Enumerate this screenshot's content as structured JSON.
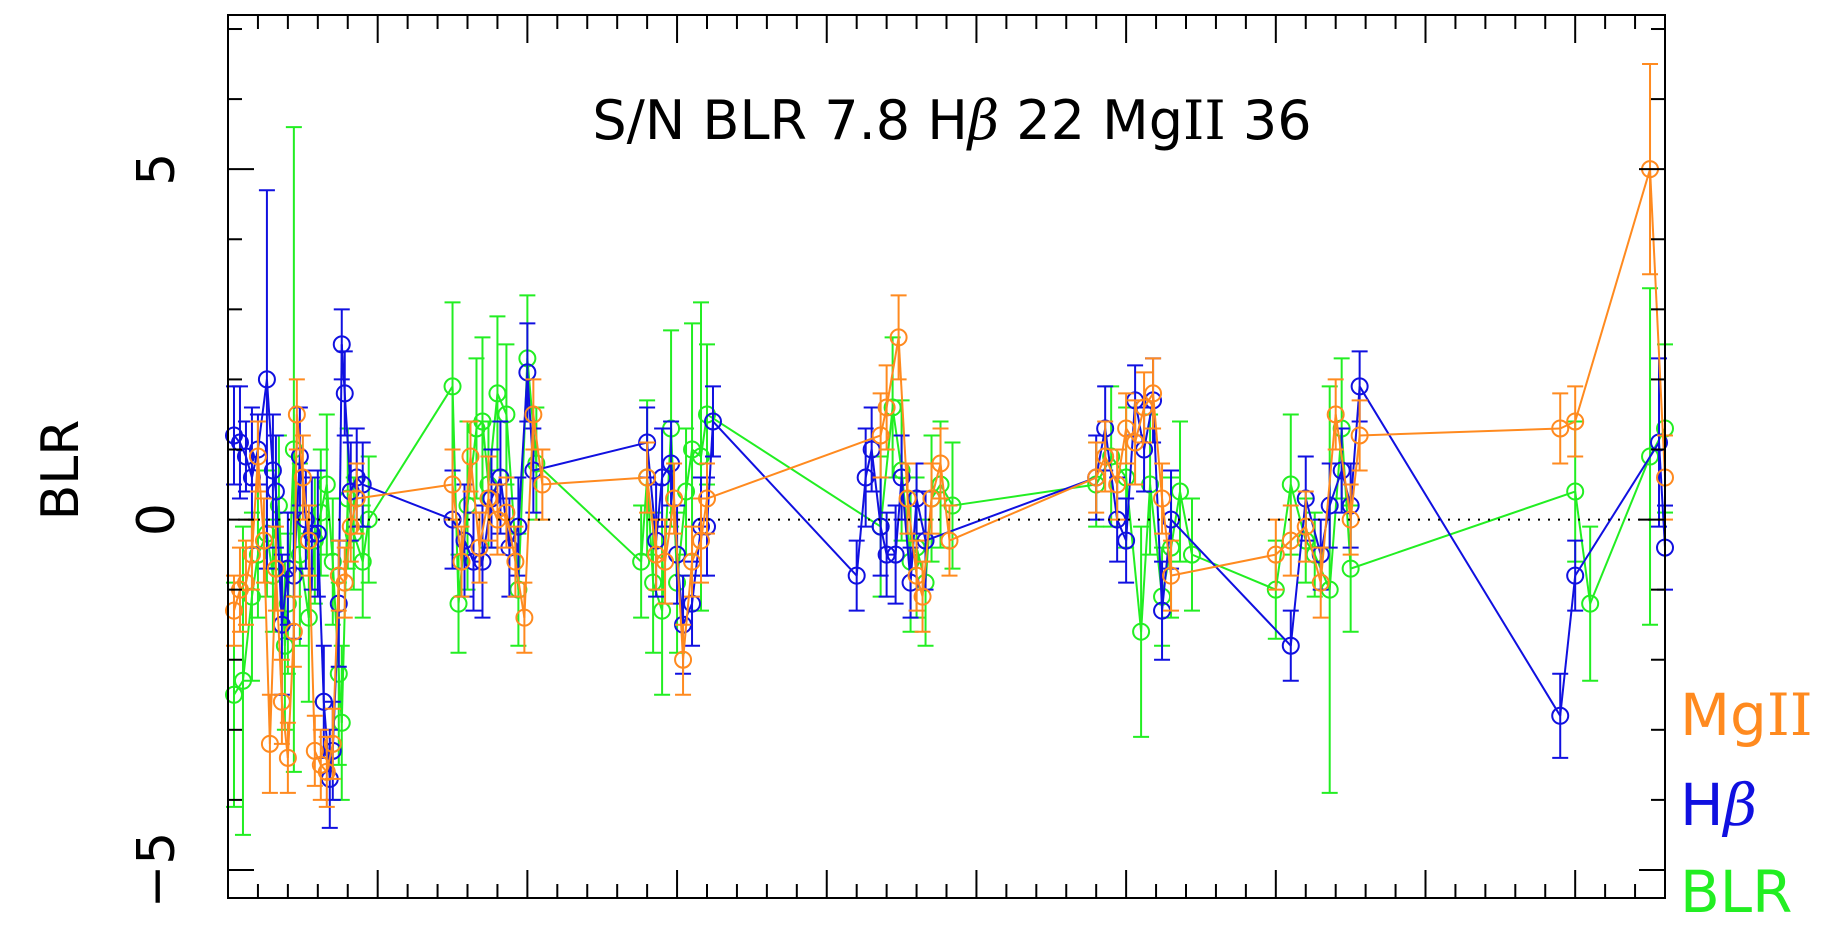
{
  "chart_data": {
    "type": "line",
    "title": "S/N BLR 7.8 Hβ 22 MgII 36",
    "title_parts": {
      "prefix": "S/N BLR 7.8 H",
      "beta": "β",
      "mid": " 22 Mg",
      "roman": "II",
      "suffix": " 36"
    },
    "xlabel": "",
    "ylabel": "BLR",
    "ylim": [
      -5.4,
      7.2
    ],
    "xlim": [
      0,
      4.8
    ],
    "yticks": [
      -5,
      0,
      5
    ],
    "ytick_labels": [
      "−5",
      "0",
      "5"
    ],
    "zero_line": "dotted",
    "grid": false,
    "legend_position": "bottom-right",
    "legend": [
      {
        "prefix": "Mg",
        "roman": "II",
        "greek": "",
        "color": "#ff8a1f"
      },
      {
        "prefix": "H",
        "roman": "",
        "greek": "β",
        "color": "#1010e0"
      },
      {
        "prefix": "BLR",
        "roman": "",
        "greek": "",
        "color": "#22ee22"
      }
    ],
    "colors": {
      "MgII": "#ff8a1f",
      "Hbeta": "#1010e0",
      "BLR": "#22ee22",
      "axes": "#000000"
    },
    "series": [
      {
        "name": "BLR",
        "color": "#22ee22",
        "points": [
          [
            0.02,
            -2.5,
            1.6
          ],
          [
            0.05,
            -2.3,
            2.2
          ],
          [
            0.08,
            -1.1,
            1.2
          ],
          [
            0.1,
            -0.5,
            0.9
          ],
          [
            0.13,
            -0.2,
            0.9
          ],
          [
            0.15,
            -0.8,
            0.8
          ],
          [
            0.17,
            0.2,
            1.0
          ],
          [
            0.19,
            -1.8,
            1.2
          ],
          [
            0.2,
            -1.2,
            1.0
          ],
          [
            0.22,
            1.0,
            4.6
          ],
          [
            0.24,
            -0.5,
            1.3
          ],
          [
            0.27,
            -1.4,
            1.2
          ],
          [
            0.29,
            -0.3,
            0.9
          ],
          [
            0.31,
            0.1,
            0.9
          ],
          [
            0.33,
            0.5,
            1.0
          ],
          [
            0.35,
            -0.6,
            0.9
          ],
          [
            0.37,
            -2.2,
            1.3
          ],
          [
            0.38,
            -2.9,
            1.1
          ],
          [
            0.4,
            0.3,
            1.0
          ],
          [
            0.42,
            -0.2,
            0.8
          ],
          [
            0.45,
            -0.6,
            0.8
          ],
          [
            0.47,
            0.0,
            0.9
          ],
          [
            0.75,
            1.9,
            1.2
          ],
          [
            0.77,
            -1.2,
            0.7
          ],
          [
            0.8,
            0.2,
            1.2
          ],
          [
            0.83,
            1.3,
            1.0
          ],
          [
            0.85,
            1.4,
            1.2
          ],
          [
            0.87,
            0.5,
            0.9
          ],
          [
            0.9,
            1.8,
            1.1
          ],
          [
            0.93,
            1.5,
            1.0
          ],
          [
            0.97,
            -1.0,
            0.8
          ],
          [
            1.0,
            2.3,
            0.9
          ],
          [
            1.03,
            0.8,
            0.8
          ],
          [
            1.38,
            -0.6,
            0.8
          ],
          [
            1.4,
            0.6,
            1.1
          ],
          [
            1.42,
            -0.9,
            1.0
          ],
          [
            1.45,
            -1.3,
            1.2
          ],
          [
            1.48,
            1.3,
            1.4
          ],
          [
            1.5,
            -0.9,
            1.0
          ],
          [
            1.53,
            0.4,
            0.9
          ],
          [
            1.55,
            1.0,
            1.8
          ],
          [
            1.58,
            0.9,
            2.2
          ],
          [
            1.6,
            1.5,
            1.0
          ],
          [
            2.18,
            -0.1,
            1.0
          ],
          [
            2.22,
            1.6,
            1.0
          ],
          [
            2.25,
            0.7,
            1.0
          ],
          [
            2.28,
            -0.6,
            1.0
          ],
          [
            2.3,
            -0.4,
            1.0
          ],
          [
            2.33,
            -0.9,
            0.9
          ],
          [
            2.35,
            0.3,
            0.9
          ],
          [
            2.38,
            0.5,
            0.9
          ],
          [
            2.42,
            0.2,
            0.9
          ],
          [
            2.9,
            0.5,
            0.6
          ],
          [
            2.95,
            0.9,
            1.0
          ],
          [
            3.0,
            0.6,
            1.0
          ],
          [
            3.05,
            -1.6,
            1.5
          ],
          [
            3.08,
            0.5,
            1.0
          ],
          [
            3.12,
            -1.1,
            0.7
          ],
          [
            3.15,
            -0.4,
            1.0
          ],
          [
            3.18,
            0.4,
            1.0
          ],
          [
            3.22,
            -0.5,
            0.8
          ],
          [
            3.5,
            -1.0,
            0.7
          ],
          [
            3.55,
            0.5,
            1.0
          ],
          [
            3.6,
            -0.3,
            0.6
          ],
          [
            3.63,
            -0.5,
            0.6
          ],
          [
            3.68,
            -1.0,
            2.9
          ],
          [
            3.72,
            1.3,
            1.0
          ],
          [
            3.75,
            -0.7,
            0.9
          ],
          [
            4.5,
            0.4,
            1.0
          ],
          [
            4.55,
            -1.2,
            1.1
          ],
          [
            4.75,
            0.9,
            2.4
          ],
          [
            4.8,
            1.3,
            1.2
          ]
        ]
      },
      {
        "name": "Hβ",
        "color": "#1010e0",
        "points": [
          [
            0.02,
            1.2,
            0.7
          ],
          [
            0.04,
            1.1,
            0.8
          ],
          [
            0.06,
            0.9,
            0.5
          ],
          [
            0.08,
            0.6,
            1.0
          ],
          [
            0.1,
            1.0,
            0.5
          ],
          [
            0.13,
            2.0,
            2.7
          ],
          [
            0.15,
            0.7,
            0.8
          ],
          [
            0.16,
            0.4,
            0.8
          ],
          [
            0.18,
            -1.5,
            1.0
          ],
          [
            0.2,
            -0.7,
            0.8
          ],
          [
            0.22,
            -0.8,
            0.9
          ],
          [
            0.24,
            0.9,
            0.7
          ],
          [
            0.26,
            0.0,
            0.7
          ],
          [
            0.28,
            -0.2,
            0.8
          ],
          [
            0.3,
            -0.2,
            0.9
          ],
          [
            0.32,
            -2.6,
            0.8
          ],
          [
            0.34,
            -3.7,
            0.7
          ],
          [
            0.35,
            -3.3,
            0.7
          ],
          [
            0.37,
            -1.2,
            0.9
          ],
          [
            0.38,
            2.5,
            0.5
          ],
          [
            0.39,
            1.8,
            0.6
          ],
          [
            0.41,
            0.4,
            0.7
          ],
          [
            0.43,
            0.6,
            0.7
          ],
          [
            0.45,
            0.5,
            0.6
          ],
          [
            0.75,
            0.0,
            0.7
          ],
          [
            0.79,
            -0.3,
            0.8
          ],
          [
            0.82,
            -0.6,
            0.7
          ],
          [
            0.85,
            -0.6,
            0.8
          ],
          [
            0.88,
            0.3,
            0.7
          ],
          [
            0.91,
            0.6,
            0.8
          ],
          [
            0.94,
            -0.4,
            0.7
          ],
          [
            0.97,
            -0.1,
            0.7
          ],
          [
            1.0,
            2.1,
            0.7
          ],
          [
            1.02,
            0.7,
            0.6
          ],
          [
            1.4,
            1.1,
            0.5
          ],
          [
            1.43,
            -0.3,
            0.8
          ],
          [
            1.45,
            0.6,
            0.7
          ],
          [
            1.48,
            0.8,
            0.6
          ],
          [
            1.5,
            -0.5,
            0.7
          ],
          [
            1.52,
            -1.5,
            0.7
          ],
          [
            1.55,
            -1.2,
            0.6
          ],
          [
            1.58,
            -0.1,
            0.7
          ],
          [
            1.6,
            -0.1,
            0.7
          ],
          [
            1.62,
            1.4,
            0.5
          ],
          [
            2.1,
            -0.8,
            0.5
          ],
          [
            2.13,
            0.6,
            0.7
          ],
          [
            2.15,
            1.0,
            0.6
          ],
          [
            2.18,
            -0.1,
            0.7
          ],
          [
            2.2,
            -0.5,
            0.6
          ],
          [
            2.23,
            -0.5,
            0.7
          ],
          [
            2.25,
            0.6,
            0.6
          ],
          [
            2.28,
            -0.9,
            0.5
          ],
          [
            2.3,
            0.3,
            0.5
          ],
          [
            2.33,
            -0.3,
            0.7
          ],
          [
            2.9,
            0.6,
            0.6
          ],
          [
            2.93,
            1.3,
            0.6
          ],
          [
            2.97,
            0.0,
            0.6
          ],
          [
            3.0,
            -0.3,
            0.6
          ],
          [
            3.03,
            1.7,
            0.5
          ],
          [
            3.06,
            1.0,
            0.6
          ],
          [
            3.09,
            1.7,
            0.6
          ],
          [
            3.12,
            -1.3,
            0.7
          ],
          [
            3.15,
            0.0,
            0.7
          ],
          [
            3.55,
            -1.8,
            0.5
          ],
          [
            3.6,
            0.3,
            0.6
          ],
          [
            3.65,
            -0.5,
            0.5
          ],
          [
            3.68,
            0.2,
            0.6
          ],
          [
            3.72,
            0.7,
            0.6
          ],
          [
            3.75,
            0.2,
            0.6
          ],
          [
            3.78,
            1.9,
            0.5
          ],
          [
            4.45,
            -2.8,
            0.6
          ],
          [
            4.5,
            -0.8,
            0.5
          ],
          [
            4.78,
            1.1,
            1.2
          ],
          [
            4.8,
            -0.4,
            0.6
          ]
        ]
      },
      {
        "name": "MgII",
        "color": "#ff8a1f",
        "points": [
          [
            0.02,
            -1.3,
            0.5
          ],
          [
            0.04,
            -1.0,
            0.6
          ],
          [
            0.06,
            -0.9,
            0.6
          ],
          [
            0.08,
            -0.5,
            0.5
          ],
          [
            0.1,
            0.9,
            0.5
          ],
          [
            0.12,
            -0.3,
            0.6
          ],
          [
            0.14,
            -3.2,
            0.7
          ],
          [
            0.16,
            -0.7,
            0.6
          ],
          [
            0.18,
            -2.6,
            0.6
          ],
          [
            0.2,
            -3.4,
            0.5
          ],
          [
            0.22,
            -1.6,
            0.5
          ],
          [
            0.23,
            1.5,
            0.5
          ],
          [
            0.25,
            0.6,
            0.6
          ],
          [
            0.27,
            -0.3,
            0.5
          ],
          [
            0.29,
            -3.3,
            0.5
          ],
          [
            0.31,
            -3.5,
            0.5
          ],
          [
            0.33,
            -3.6,
            0.5
          ],
          [
            0.35,
            -3.2,
            0.5
          ],
          [
            0.37,
            -0.8,
            0.5
          ],
          [
            0.39,
            -0.9,
            0.5
          ],
          [
            0.41,
            -0.1,
            0.5
          ],
          [
            0.43,
            0.3,
            0.5
          ],
          [
            0.75,
            0.5,
            0.5
          ],
          [
            0.78,
            -0.6,
            0.5
          ],
          [
            0.81,
            0.9,
            0.5
          ],
          [
            0.84,
            -0.4,
            0.5
          ],
          [
            0.87,
            0.3,
            0.6
          ],
          [
            0.9,
            0.0,
            0.5
          ],
          [
            0.93,
            0.1,
            0.5
          ],
          [
            0.96,
            -0.6,
            0.5
          ],
          [
            0.99,
            -1.4,
            0.5
          ],
          [
            1.02,
            1.5,
            0.5
          ],
          [
            1.05,
            0.5,
            0.5
          ],
          [
            1.4,
            0.6,
            0.5
          ],
          [
            1.43,
            -0.5,
            0.5
          ],
          [
            1.46,
            -0.6,
            0.6
          ],
          [
            1.49,
            0.3,
            0.5
          ],
          [
            1.52,
            -2.0,
            0.5
          ],
          [
            1.55,
            -0.6,
            0.5
          ],
          [
            1.58,
            -0.3,
            0.6
          ],
          [
            1.6,
            0.3,
            0.5
          ],
          [
            2.18,
            1.2,
            0.6
          ],
          [
            2.2,
            1.6,
            0.6
          ],
          [
            2.24,
            2.6,
            0.6
          ],
          [
            2.27,
            0.3,
            0.5
          ],
          [
            2.3,
            -0.8,
            0.5
          ],
          [
            2.32,
            -1.1,
            0.5
          ],
          [
            2.35,
            0.3,
            0.5
          ],
          [
            2.38,
            0.8,
            0.5
          ],
          [
            2.41,
            -0.3,
            0.5
          ],
          [
            2.9,
            0.6,
            0.5
          ],
          [
            2.93,
            0.9,
            0.5
          ],
          [
            2.97,
            0.5,
            0.5
          ],
          [
            3.0,
            1.3,
            0.5
          ],
          [
            3.03,
            1.1,
            0.6
          ],
          [
            3.06,
            1.6,
            0.5
          ],
          [
            3.09,
            1.8,
            0.5
          ],
          [
            3.12,
            0.3,
            0.5
          ],
          [
            3.15,
            -0.8,
            0.5
          ],
          [
            3.5,
            -0.5,
            0.5
          ],
          [
            3.55,
            -0.3,
            0.5
          ],
          [
            3.6,
            -0.1,
            0.5
          ],
          [
            3.65,
            -0.9,
            0.5
          ],
          [
            3.7,
            1.5,
            0.5
          ],
          [
            3.75,
            0.0,
            0.5
          ],
          [
            3.78,
            1.2,
            0.5
          ],
          [
            4.45,
            1.3,
            0.5
          ],
          [
            4.5,
            1.4,
            0.5
          ],
          [
            4.75,
            5.0,
            1.5
          ],
          [
            4.8,
            0.6,
            0.6
          ]
        ]
      }
    ]
  }
}
